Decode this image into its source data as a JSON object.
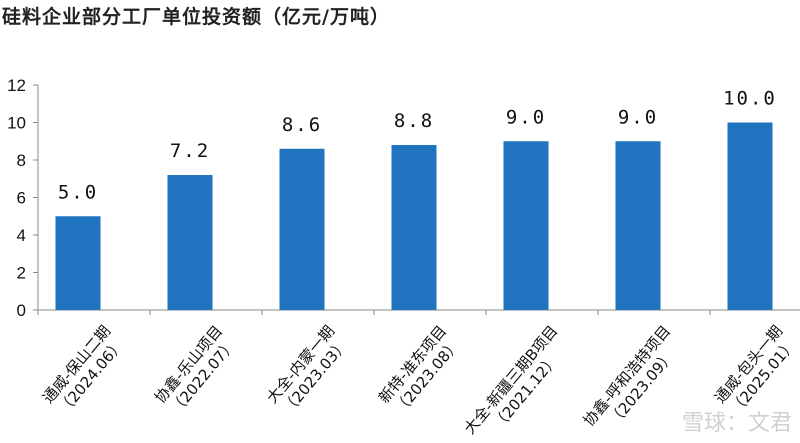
{
  "title": "硅料企业部分工厂单位投资额（亿元/万吨）",
  "watermark": "雪球：文君",
  "chart_data": {
    "type": "bar",
    "title": "硅料企业部分工厂单位投资额（亿元/万吨）",
    "categories": [
      {
        "name": "通威-保山二期",
        "date": "（2024.06）"
      },
      {
        "name": "协鑫-乐山项目",
        "date": "（2022.07）"
      },
      {
        "name": "大全-内蒙一期",
        "date": "（2023.03）"
      },
      {
        "name": "新特-准东项目",
        "date": "（2023.08）"
      },
      {
        "name": "大全-新疆三期B项目",
        "date": "（2021.12）"
      },
      {
        "name": "协鑫-呼和浩特项目",
        "date": "（2023.09）"
      },
      {
        "name": "通威-包头一期",
        "date": "（2025.01）"
      }
    ],
    "values": [
      5.0,
      7.2,
      8.6,
      8.8,
      9.0,
      9.0,
      10.0
    ],
    "data_labels": [
      "5.0",
      "7.2",
      "8.6",
      "8.8",
      "9.0",
      "9.0",
      "10.0"
    ],
    "ylim": [
      0,
      12
    ],
    "yticks": [
      "0",
      "2",
      "4",
      "6",
      "8",
      "10",
      "12"
    ],
    "bar_color": "#1f73bf",
    "xlabel": "",
    "ylabel": ""
  }
}
